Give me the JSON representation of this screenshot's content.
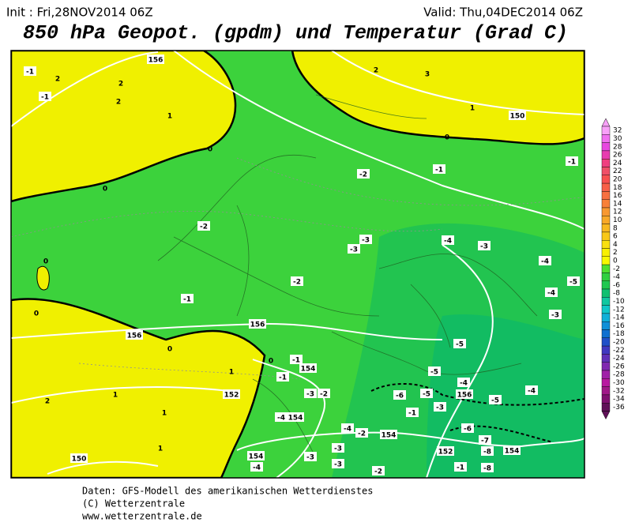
{
  "header": {
    "init": "Init : Fri,28NOV2014 06Z",
    "valid": "Valid: Thu,04DEC2014 06Z",
    "title": "850 hPa Geopot. (gpdm) und Temperatur (Grad C)"
  },
  "map": {
    "labels": [
      "-1",
      "2",
      "2",
      "-1",
      "2",
      "1",
      "0",
      "0",
      "156",
      "2",
      "3",
      "1",
      "150",
      "0",
      "-1",
      "-2",
      "-1",
      "-2",
      "-3",
      "-3",
      "-4",
      "-3",
      "-4",
      "-5",
      "-4",
      "-3",
      "-2",
      "-1",
      "0",
      "0",
      "156",
      "156",
      "0",
      "0",
      "-1",
      "154",
      "-1",
      "1",
      "-5",
      "-5",
      "-4",
      "156",
      "-5",
      "-4",
      "152",
      "1",
      "2",
      "1",
      "-3",
      "-2",
      "-6",
      "-5",
      "-1",
      "-3",
      "-4",
      "154",
      "-4",
      "-2",
      "154",
      "-6",
      "-7",
      "-8",
      "154",
      "152",
      "-3",
      "-3",
      "1",
      "150",
      "154",
      "-4",
      "-3",
      "-2",
      "-1",
      "-8"
    ]
  },
  "legend": {
    "items": [
      {
        "label": "32",
        "color": "#f8a0f8"
      },
      {
        "label": "30",
        "color": "#f070f0"
      },
      {
        "label": "28",
        "color": "#e848e0"
      },
      {
        "label": "26",
        "color": "#e83cb0"
      },
      {
        "label": "24",
        "color": "#f04080"
      },
      {
        "label": "22",
        "color": "#f05068"
      },
      {
        "label": "20",
        "color": "#f85050"
      },
      {
        "label": "18",
        "color": "#f86048"
      },
      {
        "label": "16",
        "color": "#f87040"
      },
      {
        "label": "14",
        "color": "#f88038"
      },
      {
        "label": "12",
        "color": "#f89830"
      },
      {
        "label": "10",
        "color": "#f8a828"
      },
      {
        "label": "8",
        "color": "#f8b820"
      },
      {
        "label": "6",
        "color": "#f8c818"
      },
      {
        "label": "4",
        "color": "#f8e010"
      },
      {
        "label": "2",
        "color": "#f8f000"
      },
      {
        "label": "0",
        "color": "#f8f800"
      },
      {
        "label": "-2",
        "color": "#50e030"
      },
      {
        "label": "-4",
        "color": "#30d040"
      },
      {
        "label": "-6",
        "color": "#20c850"
      },
      {
        "label": "-8",
        "color": "#10c070"
      },
      {
        "label": "-10",
        "color": "#10c8a0"
      },
      {
        "label": "-12",
        "color": "#10c8c8"
      },
      {
        "label": "-14",
        "color": "#10b0d8"
      },
      {
        "label": "-16",
        "color": "#1090d8"
      },
      {
        "label": "-18",
        "color": "#1070d0"
      },
      {
        "label": "-20",
        "color": "#2050c8"
      },
      {
        "label": "-22",
        "color": "#4038c0"
      },
      {
        "label": "-24",
        "color": "#6030b8"
      },
      {
        "label": "-26",
        "color": "#8028b0"
      },
      {
        "label": "-28",
        "color": "#a020a8"
      },
      {
        "label": "-30",
        "color": "#b818a0"
      },
      {
        "label": "-32",
        "color": "#a01888"
      },
      {
        "label": "-34",
        "color": "#801070"
      },
      {
        "label": "-36",
        "color": "#601058"
      }
    ]
  },
  "footer": {
    "lines": [
      "Daten: GFS-Modell des amerikanischen Wetterdienstes",
      "(C) Wetterzentrale",
      "www.wetterzentrale.de"
    ]
  }
}
